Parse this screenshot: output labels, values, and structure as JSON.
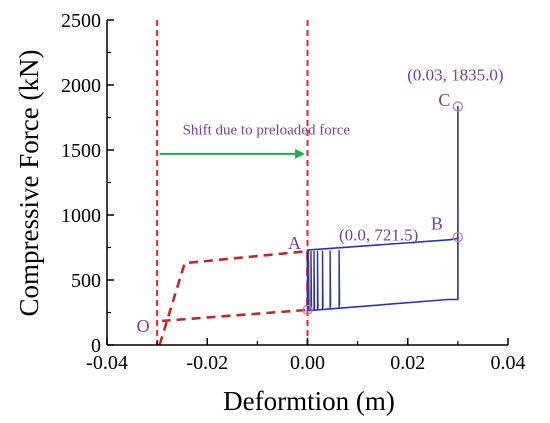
{
  "chart_data": {
    "type": "line",
    "title": "",
    "xlabel": "Deformtion (m)",
    "ylabel": "Compressive Force (kN)",
    "xlim": [
      -0.04,
      0.04
    ],
    "ylim": [
      0,
      2500
    ],
    "xticks": [
      -0.04,
      -0.02,
      0.0,
      0.02,
      0.04
    ],
    "yticks": [
      0,
      500,
      1000,
      1500,
      2000,
      2500
    ],
    "xtick_labels": [
      "-0.04",
      "-0.02",
      "0.00",
      "0.02",
      "0.04"
    ],
    "ytick_labels": [
      "0",
      "500",
      "1000",
      "1500",
      "2000",
      "2500"
    ],
    "grid": false,
    "colors": {
      "dashed_curve": "#c0282a",
      "solid_curve": "#2b32b0",
      "vertical_lines": "#e8232a",
      "annotation": "#7a3d9a",
      "shift_arrow": "#18b04a",
      "markers": "#c07ab8"
    },
    "series": [
      {
        "style": "dashed",
        "x": [
          -0.0295,
          -0.0245,
          0.0,
          0.0,
          -0.029
        ],
        "y": [
          0,
          630,
          721.5,
          270,
          185
        ]
      },
      {
        "style": "solid",
        "x": [
          0.0,
          0.0,
          0.0,
          0.0285,
          0.03,
          0.03,
          0.03,
          0.03,
          0.028,
          0.0003
        ],
        "y": [
          270,
          721.5,
          730,
          810,
          821,
          1835,
          820,
          350,
          350,
          265
        ]
      }
    ],
    "inner_loops": [
      {
        "x": [
          0.0002,
          0.0002,
          0.0003
        ],
        "y": [
          265,
          722,
          272
        ]
      },
      {
        "x": [
          0.0007,
          0.0007,
          0.0008
        ],
        "y": [
          268,
          722,
          275
        ]
      },
      {
        "x": [
          0.0013,
          0.0013,
          0.0014
        ],
        "y": [
          270,
          723,
          278
        ]
      },
      {
        "x": [
          0.002,
          0.002,
          0.0021
        ],
        "y": [
          272,
          724,
          282
        ]
      },
      {
        "x": [
          0.003,
          0.003,
          0.0031
        ],
        "y": [
          275,
          726,
          288
        ]
      },
      {
        "x": [
          0.0045,
          0.0045,
          0.0046
        ],
        "y": [
          279,
          728,
          296
        ]
      },
      {
        "x": [
          0.0063,
          0.0063,
          0.0064
        ],
        "y": [
          285,
          731,
          305
        ]
      }
    ],
    "vertical_lines": [
      {
        "x": -0.03,
        "style": "dashed"
      },
      {
        "x": 0.0,
        "style": "dashed"
      }
    ],
    "marker_points": [
      {
        "x": 0.03,
        "y": 1835
      },
      {
        "x": 0.03,
        "y": 830
      },
      {
        "x": 0.0,
        "y": 270
      }
    ],
    "point_labels": [
      {
        "text": "(0.03, 1835.0)",
        "x": 0.0295,
        "y": 2035
      },
      {
        "text": "C",
        "x": 0.0285,
        "y": 1840
      },
      {
        "text": "B",
        "x": 0.027,
        "y": 890
      },
      {
        "text": "(0.0, 721.5)",
        "x": 0.0142,
        "y": 805
      },
      {
        "text": "A",
        "x": -0.0013,
        "y": 740
      },
      {
        "text": "O",
        "x": -0.0315,
        "y": 100
      }
    ],
    "shift_arrow": {
      "label": "Shift due to preloaded force",
      "from_x": -0.0295,
      "to_x": -0.0005,
      "y": 1470,
      "label_y": 1620
    }
  }
}
